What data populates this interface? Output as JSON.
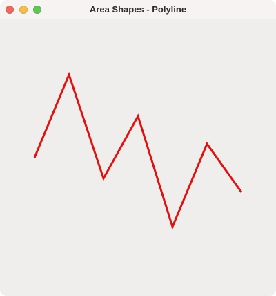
{
  "window": {
    "title": "Area Shapes - Polyline",
    "controls": {
      "close_color": "#ee6a5f",
      "minimize_color": "#f5bf4f",
      "zoom_color": "#62c655"
    }
  },
  "polyline": {
    "stroke_color": "#e0120f",
    "points": [
      [
        50,
        200
      ],
      [
        100,
        80
      ],
      [
        150,
        230
      ],
      [
        200,
        140
      ],
      [
        250,
        300
      ],
      [
        300,
        180
      ],
      [
        350,
        250
      ]
    ]
  }
}
